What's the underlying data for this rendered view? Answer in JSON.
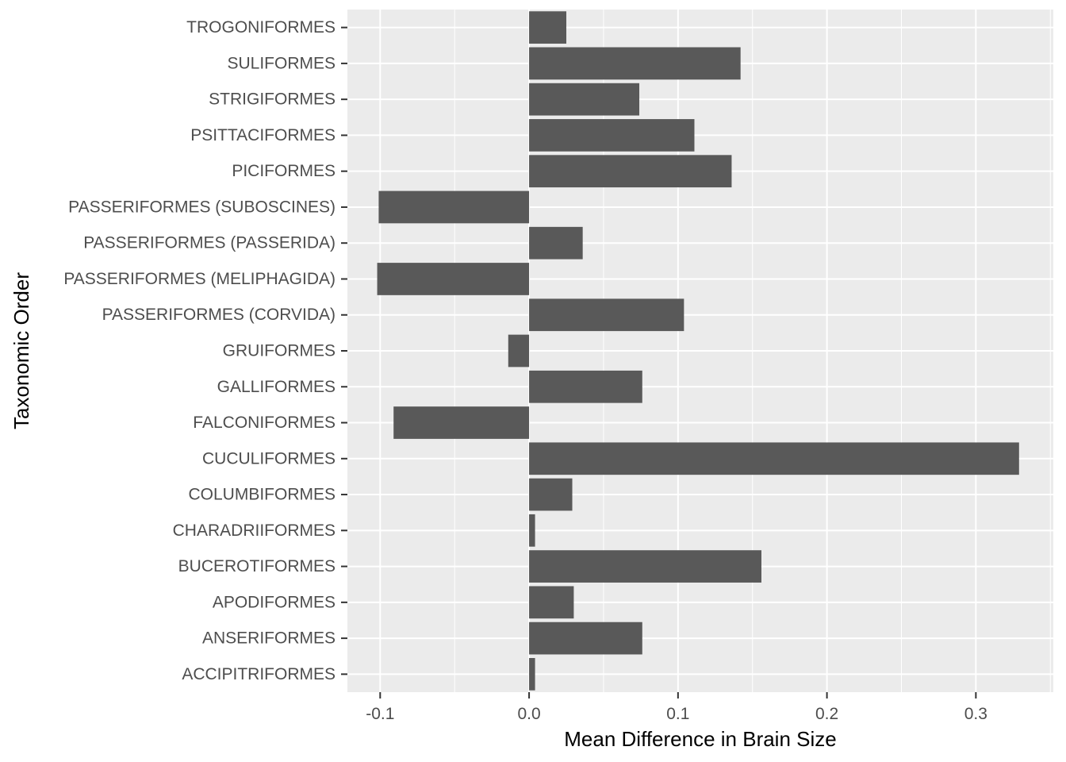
{
  "chart_data": {
    "type": "bar",
    "orientation": "horizontal",
    "xlabel": "Mean Difference in Brain Size",
    "ylabel": "Taxonomic Order",
    "xlim": [
      -0.122,
      0.352
    ],
    "x_ticks": [
      -0.1,
      0.0,
      0.1,
      0.2,
      0.3
    ],
    "x_tick_labels": [
      "-0.1",
      "0.0",
      "0.1",
      "0.2",
      "0.3"
    ],
    "grid": true,
    "categories": [
      "ACCIPITRIFORMES",
      "ANSERIFORMES",
      "APODIFORMES",
      "BUCEROTIFORMES",
      "CHARADRIIFORMES",
      "COLUMBIFORMES",
      "CUCULIFORMES",
      "FALCONIFORMES",
      "GALLIFORMES",
      "GRUIFORMES",
      "PASSERIFORMES (CORVIDA)",
      "PASSERIFORMES (MELIPHAGIDA)",
      "PASSERIFORMES (PASSERIDA)",
      "PASSERIFORMES (SUBOSCINES)",
      "PICIFORMES",
      "PSITTACIFORMES",
      "STRIGIFORMES",
      "SULIFORMES",
      "TROGONIFORMES"
    ],
    "values": [
      0.004,
      0.076,
      0.03,
      0.156,
      0.004,
      0.029,
      0.329,
      -0.091,
      0.076,
      -0.014,
      0.104,
      -0.102,
      0.036,
      -0.101,
      0.136,
      0.111,
      0.074,
      0.142,
      0.025
    ],
    "colors": {
      "panel": "#ebebeb",
      "grid": "#ffffff",
      "bar": "#595959",
      "tick": "#333333"
    }
  }
}
